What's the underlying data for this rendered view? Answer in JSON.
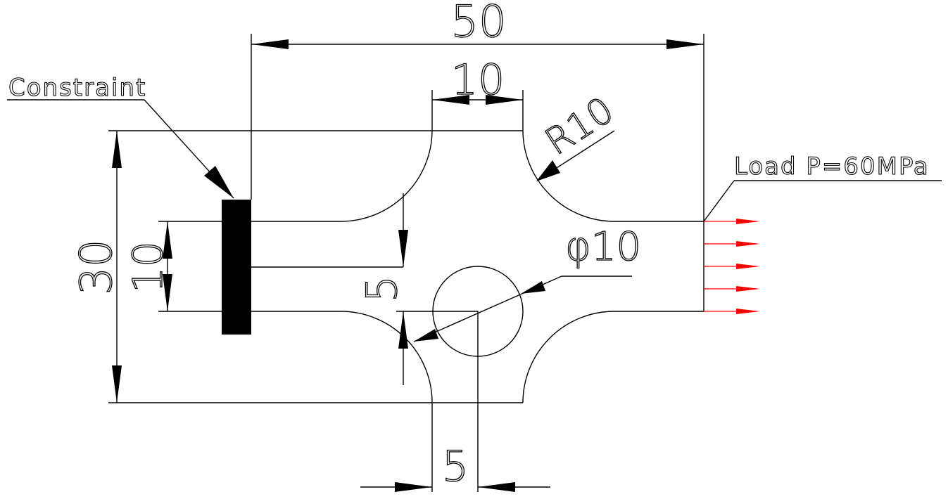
{
  "labels": {
    "constraint": "Constraint",
    "load": "Load P=60MPa"
  },
  "dimensions": {
    "overall_length": "50",
    "neck_width": "10",
    "fillet_radius": "R10",
    "overall_height": "30",
    "arm_height": "10",
    "hole_offset_vertical": "5",
    "hole_diameter": "φ10",
    "hole_offset_horizontal": "5"
  },
  "colors": {
    "line": "#000000",
    "load_arrows": "#ff0000",
    "constraint_block": "#000000",
    "background": "#ffffff"
  },
  "load_arrow_count": 5
}
